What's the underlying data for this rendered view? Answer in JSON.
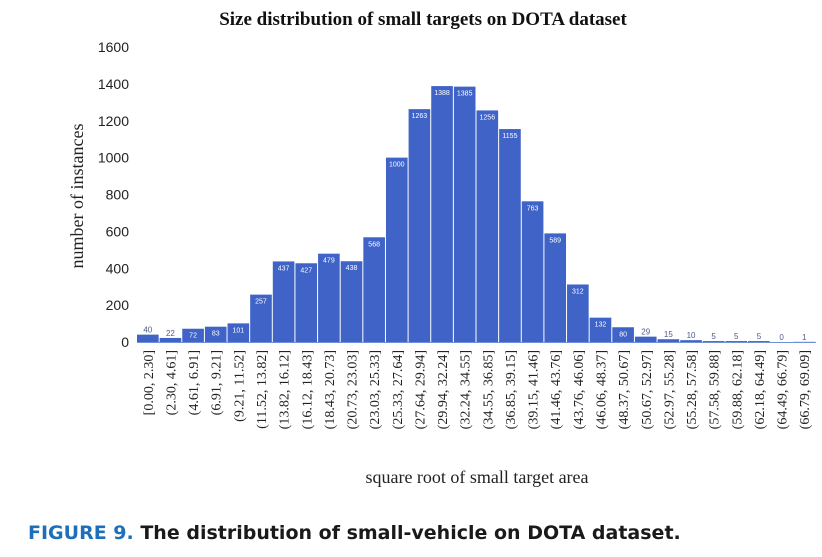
{
  "chart_data": {
    "type": "bar",
    "title": "Size distribution of small targets on DOTA dataset",
    "xlabel": "square root of small target area",
    "ylabel": "number of instances",
    "ylim": [
      0,
      1600
    ],
    "yticks": [
      0,
      200,
      400,
      600,
      800,
      1000,
      1200,
      1400,
      1600
    ],
    "categories": [
      "[0.00, 2.30]",
      "(2.30, 4.61]",
      "(4.61, 6.91]",
      "(6.91, 9.21]",
      "(9.21, 11.52]",
      "(11.52, 13.82]",
      "(13.82, 16.12]",
      "(16.12, 18.43]",
      "(18.43, 20.73]",
      "(20.73, 23.03]",
      "(23.03, 25.33]",
      "(25.33, 27.64]",
      "(27.64, 29.94]",
      "(29.94, 32.24]",
      "(32.24, 34.55]",
      "(34.55, 36.85]",
      "(36.85, 39.15]",
      "(39.15, 41.46]",
      "(41.46, 43.76]",
      "(43.76, 46.06]",
      "(46.06, 48.37]",
      "(48.37, 50.67]",
      "(50.67, 52.97]",
      "(52.97, 55.28]",
      "(55.28, 57.58]",
      "(57.58, 59.88]",
      "(59.88, 62.18]",
      "(62.18, 64.49]",
      "(64.49, 66.79]",
      "(66.79, 69.09]"
    ],
    "values": [
      40,
      22,
      72,
      83,
      101,
      257,
      437,
      427,
      479,
      438,
      568,
      1000,
      1263,
      1388,
      1385,
      1256,
      1155,
      763,
      589,
      312,
      132,
      80,
      29,
      15,
      10,
      5,
      5,
      5,
      0,
      1
    ],
    "bar_color": "#3f63c7",
    "grid": false
  },
  "caption": {
    "figure_label": "FIGURE 9.",
    "text": " The distribution of small-vehicle on DOTA dataset."
  }
}
